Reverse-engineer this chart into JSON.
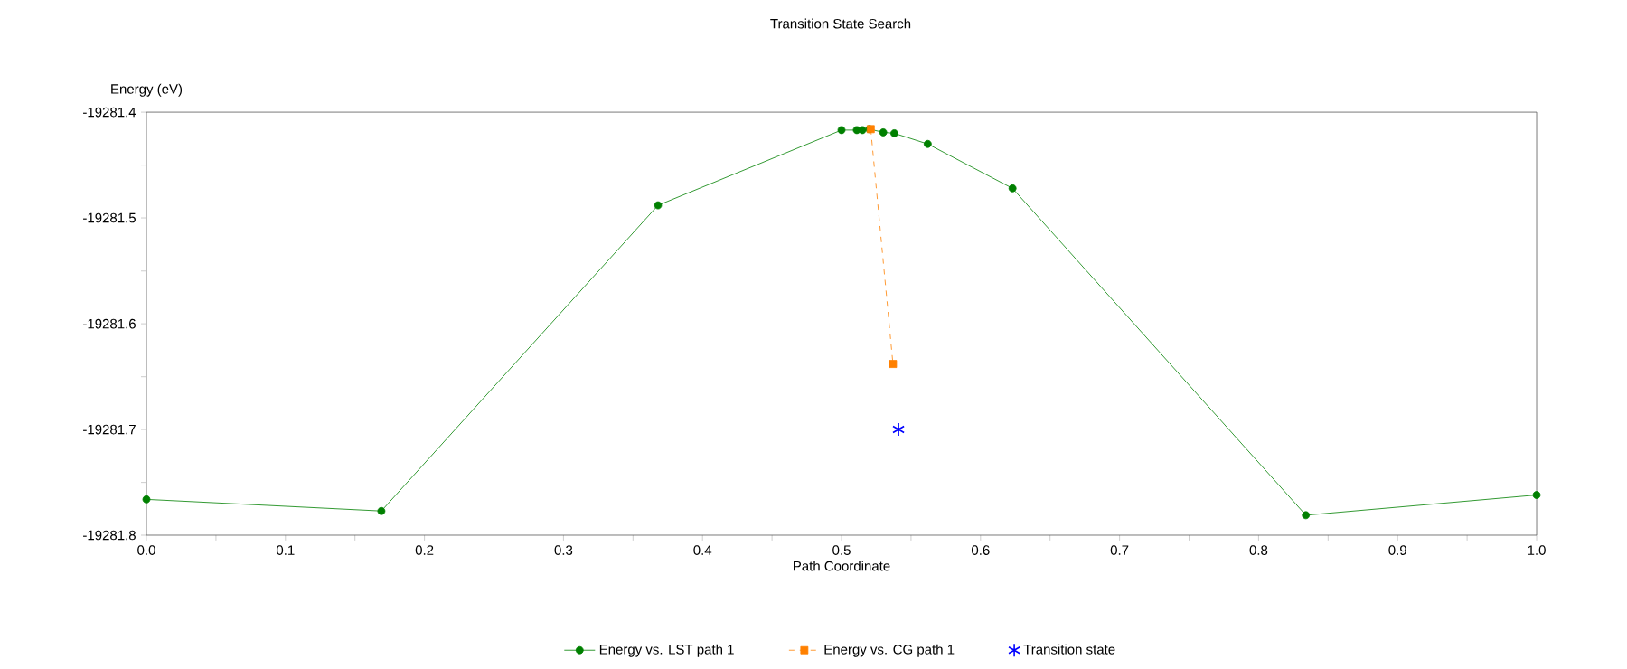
{
  "chart_data": {
    "type": "line",
    "title": "Transition State Search",
    "xlabel": "Path Coordinate",
    "ylabel": "Energy (eV)",
    "xlim": [
      0,
      1
    ],
    "xticks": [
      {
        "value": 0,
        "label": "0.0"
      },
      0.1,
      0.2,
      0.3,
      0.4,
      0.5,
      0.6,
      0.7,
      0.8,
      0.9,
      {
        "value": 1,
        "label": "1.0"
      }
    ],
    "ylim": [
      -19281.8,
      -19281.4
    ],
    "yticks": [
      -19281.8,
      -19281.7,
      -19281.6,
      -19281.5,
      -19281.4
    ],
    "grid": false,
    "legend": "bottom",
    "series": [
      {
        "name": "Energy vs. LST path 1",
        "color": "#008000",
        "marker": "circle",
        "line_style": "solid",
        "x": [
          0,
          0.169,
          0.368,
          0.5,
          0.511,
          0.515,
          0.52,
          0.53,
          0.538,
          0.562,
          0.623,
          0.834,
          1.0
        ],
        "values": [
          -19281.766,
          -19281.777,
          -19281.488,
          -19281.417,
          -19281.417,
          -19281.417,
          -19281.416,
          -19281.419,
          -19281.42,
          -19281.43,
          -19281.472,
          -19281.781,
          -19281.762
        ]
      },
      {
        "name": "Energy vs. CG path 1",
        "color": "#ff8000",
        "marker": "square",
        "line_style": "dashed",
        "x": [
          0.521,
          0.537
        ],
        "values": [
          -19281.416,
          -19281.638
        ]
      },
      {
        "name": "Transition state",
        "type": "scatter",
        "color": "#0000ff",
        "marker": "cross",
        "x": [
          0.541
        ],
        "values": [
          -19281.7
        ]
      }
    ]
  }
}
